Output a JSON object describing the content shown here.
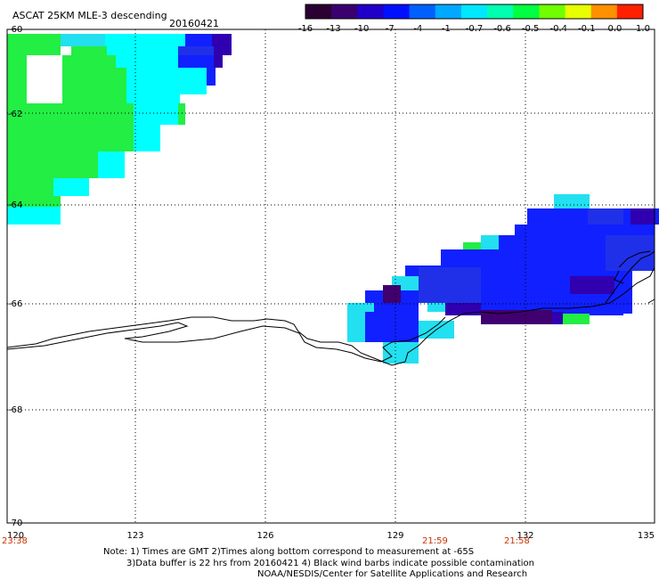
{
  "header": {
    "title": "ASCAT 25KM MLE-3 descending",
    "date": "20160421"
  },
  "colorbar": {
    "tick_labels": [
      "-16",
      "-13",
      "-10",
      "-7",
      "-4",
      "-1",
      "-0.7",
      "-0.6",
      "-0.5",
      "-0.4",
      "-0.1",
      "0.0",
      "1.0"
    ],
    "colors": [
      "#2b0033",
      "#3a0070",
      "#2000c8",
      "#0010ff",
      "#0060ff",
      "#00a8ff",
      "#00e8ff",
      "#00ffb0",
      "#00ff40",
      "#70ff00",
      "#e8ff00",
      "#ff9000",
      "#ff2000"
    ]
  },
  "map": {
    "lon_labels": [
      "120",
      "123",
      "126",
      "129",
      "132",
      "135"
    ],
    "lat_labels": [
      "-60",
      "-62",
      "-64",
      "-66",
      "-68",
      "-70"
    ],
    "time_labels": [
      "23:38",
      "21:59",
      "21:58"
    ],
    "time_color": "#c83200",
    "field_colors": {
      "green": "#22ee44",
      "cyan": "#00ffff",
      "cyan2": "#22e0f0",
      "blue": "#1020ff",
      "blue2": "#2030e8",
      "violet": "#3000b0",
      "purple": "#400070"
    }
  },
  "footer": {
    "line1": "Note: 1) Times are GMT 2)Times along bottom correspond to measurement at -65S",
    "line2": "3)Data buffer is 22 hrs from 20160421 4) Black wind barbs indicate possible contamination",
    "line3": "NOAA/NESDIS/Center for Satellite Applications and Research"
  }
}
